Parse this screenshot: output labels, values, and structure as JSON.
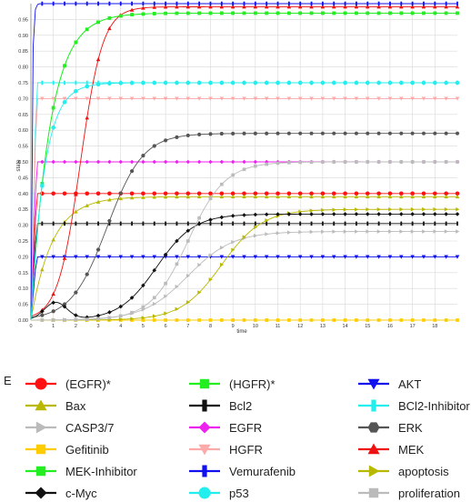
{
  "panel_letter": "E",
  "chart_data": {
    "type": "line",
    "title": "",
    "xlabel": "time",
    "ylabel": "state",
    "xlim": [
      0,
      19
    ],
    "ylim": [
      0,
      1
    ],
    "x_ticks": [
      0,
      1,
      2,
      3,
      4,
      5,
      6,
      7,
      8,
      9,
      10,
      11,
      12,
      13,
      14,
      15,
      16,
      17,
      18
    ],
    "y_ticks": [
      0.0,
      0.05,
      0.1,
      0.15,
      0.2,
      0.25,
      0.3,
      0.35,
      0.4,
      0.45,
      0.5,
      0.55,
      0.6,
      0.65,
      0.7,
      0.75,
      0.8,
      0.85,
      0.9,
      0.95
    ],
    "y_tick_labels": [
      "0.00",
      "0.05",
      "0.10",
      "0.15",
      "0.20",
      "0.25",
      "0.30",
      "0.35",
      "0.40",
      "0.45",
      "0.50",
      "0.55",
      "0.60",
      "0.65",
      "0.70",
      "0.75",
      "0.80",
      "0.85",
      "0.90",
      "0.95"
    ],
    "grid": true,
    "legend_position": "bottom",
    "series": [
      {
        "name": "(EGFR)*",
        "color": "#ff1111",
        "marker": "circle",
        "fn": {
          "kind": "const",
          "v": 0.4
        }
      },
      {
        "name": "(HGFR)*",
        "color": "#22ee22",
        "marker": "square",
        "fn": {
          "kind": "exp",
          "v": 0.97,
          "tau": 0.85
        }
      },
      {
        "name": "AKT",
        "color": "#1111ee",
        "marker": "triangle-down",
        "fn": {
          "kind": "const",
          "v": 0.2
        }
      },
      {
        "name": "Bax",
        "color": "#b8b800",
        "marker": "triangle-up",
        "fn": {
          "kind": "exp",
          "v": 0.39,
          "tau": 0.95
        }
      },
      {
        "name": "Bcl2",
        "color": "#111111",
        "marker": "bar",
        "fn": {
          "kind": "const",
          "v": 0.305
        }
      },
      {
        "name": "BCl2-Inhibitor",
        "color": "#22eeee",
        "marker": "bar",
        "fn": {
          "kind": "const",
          "v": 0.75
        }
      },
      {
        "name": "CASP3/7",
        "color": "#bbbbbb",
        "marker": "triangle-right",
        "fn": {
          "kind": "sig",
          "v": 0.28,
          "c": 7.0,
          "k": 1.0
        }
      },
      {
        "name": "EGFR",
        "color": "#ee22ee",
        "marker": "diamond",
        "fn": {
          "kind": "const",
          "v": 0.5
        }
      },
      {
        "name": "ERK",
        "color": "#555555",
        "marker": "hexagon",
        "fn": {
          "kind": "sig",
          "v": 0.59,
          "c": 3.4,
          "k": 1.25
        }
      },
      {
        "name": "Gefitinib",
        "color": "#ffcc00",
        "marker": "square",
        "fn": {
          "kind": "const",
          "v": 0.0
        }
      },
      {
        "name": "HGFR",
        "color": "#ffaaaa",
        "marker": "triangle-down",
        "fn": {
          "kind": "const",
          "v": 0.7
        }
      },
      {
        "name": "MEK",
        "color": "#ee1111",
        "marker": "triangle-up",
        "fn": {
          "kind": "sig",
          "v": 0.99,
          "c": 2.2,
          "k": 2.0
        }
      },
      {
        "name": "MEK-Inhibitor",
        "color": "#22ee22",
        "marker": "square",
        "fn": {
          "kind": "exp",
          "v": 0.97,
          "tau": 0.85
        }
      },
      {
        "name": "Vemurafenib",
        "color": "#1111ee",
        "marker": "bar",
        "fn": {
          "kind": "exp",
          "v": 1.0,
          "tau": 0.05
        }
      },
      {
        "name": "apoptosis",
        "color": "#b8b800",
        "marker": "triangle-right",
        "fn": {
          "kind": "sig",
          "v": 0.35,
          "c": 8.5,
          "k": 1.1
        }
      },
      {
        "name": "c-Myc",
        "color": "#111111",
        "marker": "diamond",
        "fn": {
          "kind": "myc",
          "v": 0.335
        }
      },
      {
        "name": "p53",
        "color": "#22eeee",
        "marker": "circle",
        "fn": {
          "kind": "exp",
          "v": 0.75,
          "tau": 0.6
        }
      },
      {
        "name": "proliferation",
        "color": "#bbbbbb",
        "marker": "square",
        "fn": {
          "kind": "sig",
          "v": 0.5,
          "c": 7.0,
          "k": 1.2
        }
      }
    ]
  }
}
